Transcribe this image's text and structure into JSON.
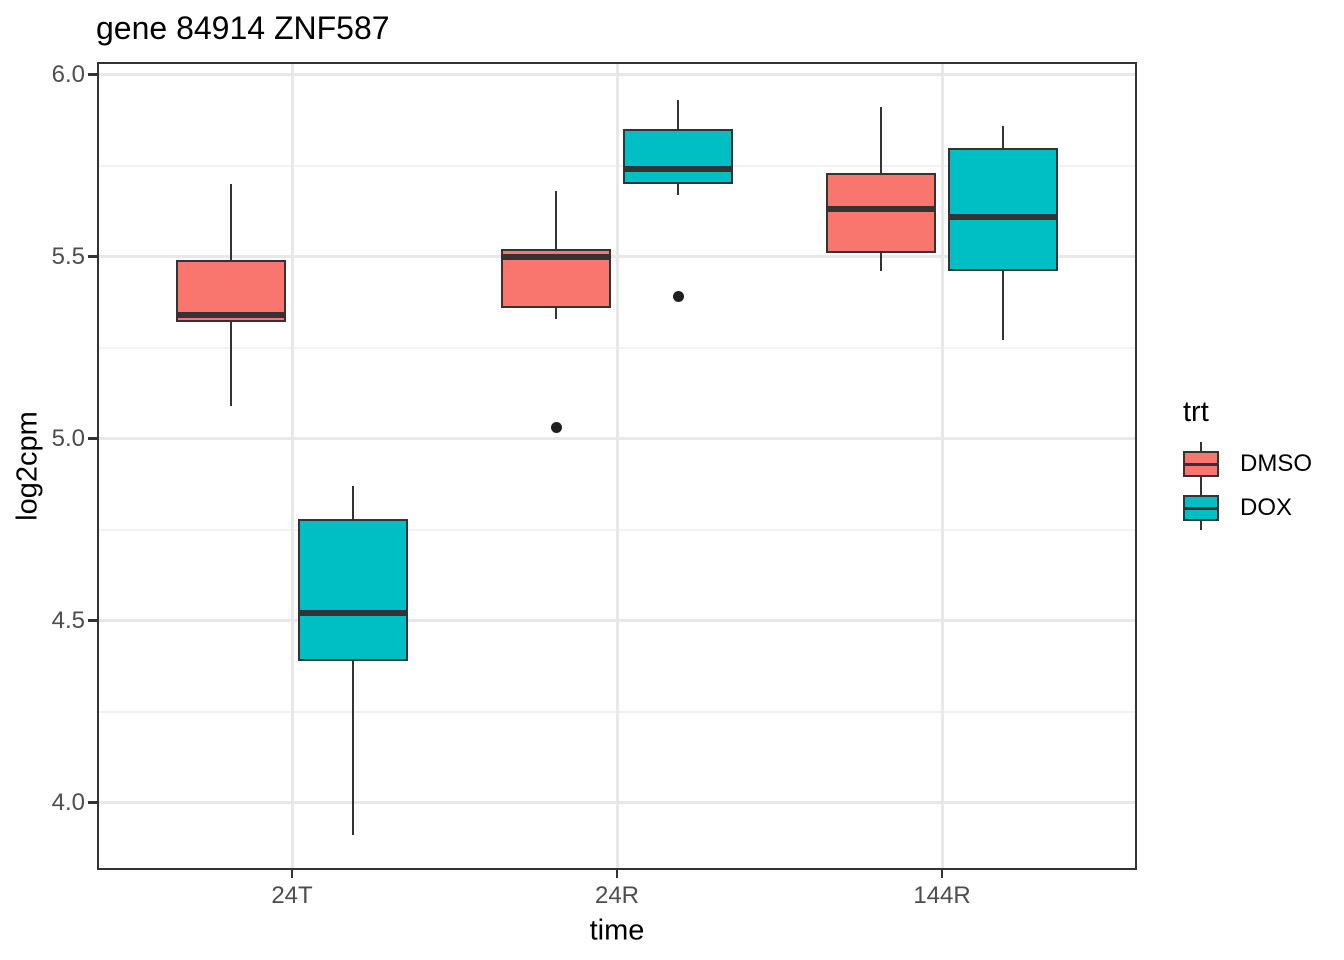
{
  "chart_data": {
    "type": "boxplot",
    "title": "gene 84914 ZNF587",
    "xlabel": "time",
    "ylabel": "log2cpm",
    "categories": [
      "24T",
      "24R",
      "144R"
    ],
    "series": [
      {
        "name": "DMSO",
        "color": "#F8766D"
      },
      {
        "name": "DOX",
        "color": "#00BFC4"
      }
    ],
    "ylim": [
      3.815,
      6.035
    ],
    "yticks": [
      4.0,
      4.5,
      5.0,
      5.5,
      6.0
    ],
    "ytick_labels": [
      "4.0",
      "4.5",
      "5.0",
      "5.5",
      "6.0"
    ],
    "y_minor_ticks": [
      4.25,
      4.75,
      5.25,
      5.75
    ],
    "grid": true,
    "legend": {
      "title": "trt",
      "position": "right",
      "entries": [
        "DMSO",
        "DOX"
      ]
    },
    "boxes": [
      {
        "category": "24T",
        "group": "DMSO",
        "whisker_low": 5.09,
        "q1": 5.32,
        "median": 5.34,
        "q3": 5.49,
        "whisker_high": 5.7,
        "outliers": []
      },
      {
        "category": "24T",
        "group": "DOX",
        "whisker_low": 3.91,
        "q1": 4.39,
        "median": 4.52,
        "q3": 4.78,
        "whisker_high": 4.87,
        "outliers": []
      },
      {
        "category": "24R",
        "group": "DMSO",
        "whisker_low": 5.33,
        "q1": 5.36,
        "median": 5.5,
        "q3": 5.52,
        "whisker_high": 5.68,
        "outliers": [
          5.03
        ]
      },
      {
        "category": "24R",
        "group": "DOX",
        "whisker_low": 5.67,
        "q1": 5.7,
        "median": 5.74,
        "q3": 5.85,
        "whisker_high": 5.93,
        "outliers": [
          5.39
        ]
      },
      {
        "category": "144R",
        "group": "DMSO",
        "whisker_low": 5.46,
        "q1": 5.51,
        "median": 5.63,
        "q3": 5.73,
        "whisker_high": 5.91,
        "outliers": []
      },
      {
        "category": "144R",
        "group": "DOX",
        "whisker_low": 5.27,
        "q1": 5.46,
        "median": 5.61,
        "q3": 5.8,
        "whisker_high": 5.86,
        "outliers": []
      }
    ],
    "theme_colors": {
      "box_border": "#333333",
      "median": "#333333",
      "outlier": "#1f1f1f",
      "grid_major": "#E8E8E8",
      "grid_minor": "#F2F2F2",
      "axis_text": "#4D4D4D",
      "tick_mark": "#333333",
      "panel_border": "#333333",
      "background": "#FFFFFF"
    }
  }
}
